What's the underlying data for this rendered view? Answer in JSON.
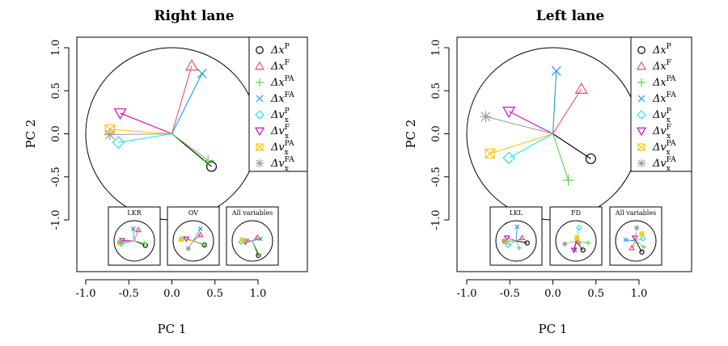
{
  "legend": [
    {
      "label": "Δx",
      "sup": "P",
      "sub": "",
      "color": "#000000",
      "marker": "circle"
    },
    {
      "label": "Δx",
      "sup": "F",
      "sub": "",
      "color": "#DF536B",
      "marker": "triangle"
    },
    {
      "label": "Δx",
      "sup": "PA",
      "sub": "",
      "color": "#61D04F",
      "marker": "plus"
    },
    {
      "label": "Δx",
      "sup": "FA",
      "sub": "",
      "color": "#2297E6",
      "marker": "cross"
    },
    {
      "label": "Δv",
      "sup": "P",
      "sub": "x",
      "color": "#28E2E5",
      "marker": "diamond"
    },
    {
      "label": "Δv",
      "sup": "F",
      "sub": "x",
      "color": "#CD0BBC",
      "marker": "triangle-down"
    },
    {
      "label": "Δv",
      "sup": "PA",
      "sub": "x",
      "color": "#F5C710",
      "marker": "square-x"
    },
    {
      "label": "Δv",
      "sup": "FA",
      "sub": "x",
      "color": "#9E9E9E",
      "marker": "asterisk"
    }
  ],
  "chart_data": [
    {
      "type": "scatter",
      "title": "Right lane",
      "xlabel": "PC 1",
      "ylabel": "PC 2",
      "xlim": [
        -1.0,
        1.0
      ],
      "ylim": [
        -1.0,
        1.0
      ],
      "xticks": [
        "-1.0",
        "-0.5",
        "0.0",
        "0.5",
        "1.0"
      ],
      "yticks": [
        "-1.0",
        "-0.5",
        "0.0",
        "0.5",
        "1.0"
      ],
      "grid": false,
      "legend_position": "top-right",
      "points": [
        {
          "x": 0.46,
          "y": -0.38
        },
        {
          "x": 0.23,
          "y": 0.79
        },
        {
          "x": 0.42,
          "y": -0.31
        },
        {
          "x": 0.35,
          "y": 0.7
        },
        {
          "x": -0.62,
          "y": -0.1
        },
        {
          "x": -0.6,
          "y": 0.24
        },
        {
          "x": -0.72,
          "y": 0.05
        },
        {
          "x": -0.72,
          "y": -0.01
        }
      ],
      "insets": [
        {
          "title": "LKR",
          "points": [
            [
              0.55,
              -0.22
            ],
            [
              0.2,
              0.55
            ],
            [
              0.5,
              -0.12
            ],
            [
              -0.05,
              0.6
            ],
            [
              -0.65,
              -0.15
            ],
            [
              -0.6,
              0.02
            ],
            [
              -0.72,
              -0.1
            ],
            [
              -0.7,
              -0.05
            ]
          ]
        },
        {
          "title": "OV",
          "points": [
            [
              0.55,
              -0.2
            ],
            [
              0.35,
              0.3
            ],
            [
              0.55,
              -0.18
            ],
            [
              0.35,
              0.6
            ],
            [
              -0.55,
              0.1
            ],
            [
              -0.35,
              0.1
            ],
            [
              -0.6,
              0.08
            ],
            [
              -0.25,
              -0.38
            ]
          ]
        },
        {
          "title": "All variables",
          "points": [
            [
              0.3,
              -0.72
            ],
            [
              0.25,
              0.18
            ],
            [
              0.35,
              -0.72
            ],
            [
              0.4,
              0.1
            ],
            [
              -0.55,
              -0.05
            ],
            [
              -0.35,
              -0.05
            ],
            [
              -0.5,
              0.05
            ],
            [
              -0.25,
              0.02
            ]
          ]
        }
      ]
    },
    {
      "type": "scatter",
      "title": "Left lane",
      "xlabel": "PC 1",
      "ylabel": "PC 2",
      "xlim": [
        -1.0,
        1.0
      ],
      "ylim": [
        -1.0,
        1.0
      ],
      "xticks": [
        "-1.0",
        "-0.5",
        "0.0",
        "0.5",
        "1.0"
      ],
      "yticks": [
        "-1.0",
        "-0.5",
        "0.0",
        "0.5",
        "1.0"
      ],
      "grid": false,
      "legend_position": "top-right",
      "points": [
        {
          "x": 0.44,
          "y": -0.29
        },
        {
          "x": 0.33,
          "y": 0.52
        },
        {
          "x": 0.18,
          "y": -0.54
        },
        {
          "x": 0.04,
          "y": 0.73
        },
        {
          "x": -0.51,
          "y": -0.28
        },
        {
          "x": -0.51,
          "y": 0.26
        },
        {
          "x": -0.73,
          "y": -0.23
        },
        {
          "x": -0.78,
          "y": 0.2
        }
      ],
      "insets": [
        {
          "title": "LKL",
          "points": [
            [
              0.55,
              -0.1
            ],
            [
              0.3,
              0.15
            ],
            [
              0.15,
              -0.35
            ],
            [
              0.05,
              0.7
            ],
            [
              -0.4,
              -0.2
            ],
            [
              -0.45,
              0.15
            ],
            [
              -0.55,
              -0.05
            ],
            [
              -0.6,
              0.0
            ]
          ]
        },
        {
          "title": "FD",
          "points": [
            [
              0.35,
              -0.45
            ],
            [
              0.1,
              -0.05
            ],
            [
              0.6,
              -0.1
            ],
            [
              -0.05,
              -0.45
            ],
            [
              0.15,
              0.65
            ],
            [
              -0.1,
              -0.45
            ],
            [
              0.05,
              0.15
            ],
            [
              -0.55,
              -0.15
            ]
          ]
        },
        {
          "title": "All variables",
          "points": [
            [
              0.3,
              -0.55
            ],
            [
              -0.2,
              -0.35
            ],
            [
              0.4,
              -0.3
            ],
            [
              -0.5,
              0.05
            ],
            [
              0.35,
              0.12
            ],
            [
              -0.05,
              0.15
            ],
            [
              0.3,
              0.35
            ],
            [
              0.05,
              0.65
            ]
          ]
        }
      ]
    }
  ]
}
